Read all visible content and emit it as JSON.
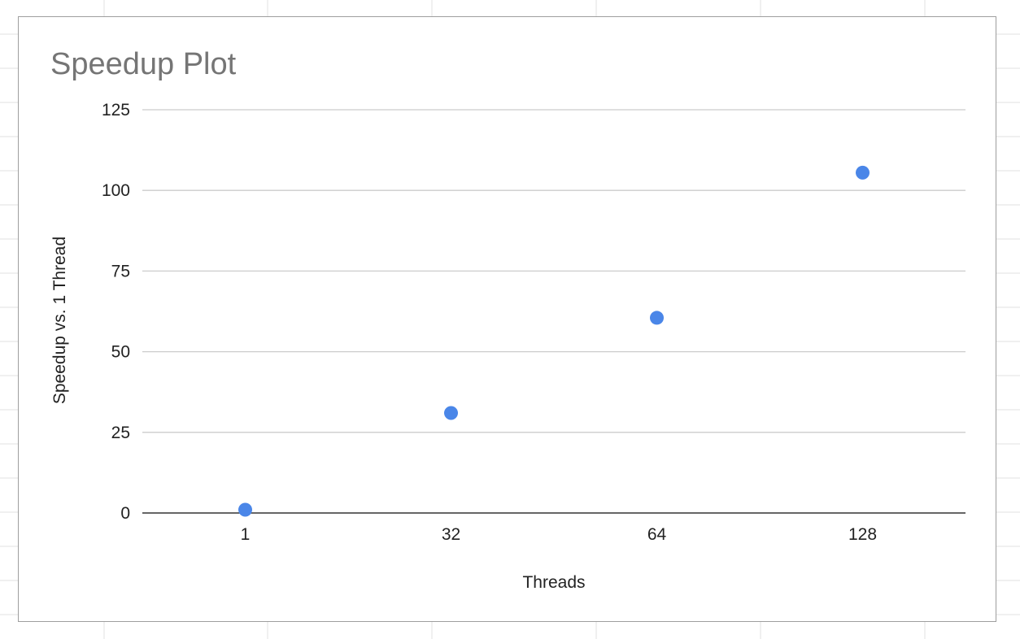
{
  "chart_data": {
    "type": "scatter",
    "title": "Speedup Plot",
    "xlabel": "Threads",
    "ylabel": "Speedup vs. 1 Thread",
    "x": [
      "1",
      "32",
      "64",
      "128"
    ],
    "series": [
      {
        "values": [
          1,
          31,
          60.5,
          105.5
        ]
      }
    ],
    "ylim": [
      0,
      125
    ],
    "yticks": [
      "0",
      "25",
      "50",
      "75",
      "100",
      "125"
    ],
    "grid": true,
    "legend": "none",
    "colors": {
      "point": "#4a86e8",
      "gridline": "#cccccc",
      "baseline": "#333333",
      "frame": "#9e9e9e",
      "sheet_grid": "#e2e2e2"
    }
  }
}
